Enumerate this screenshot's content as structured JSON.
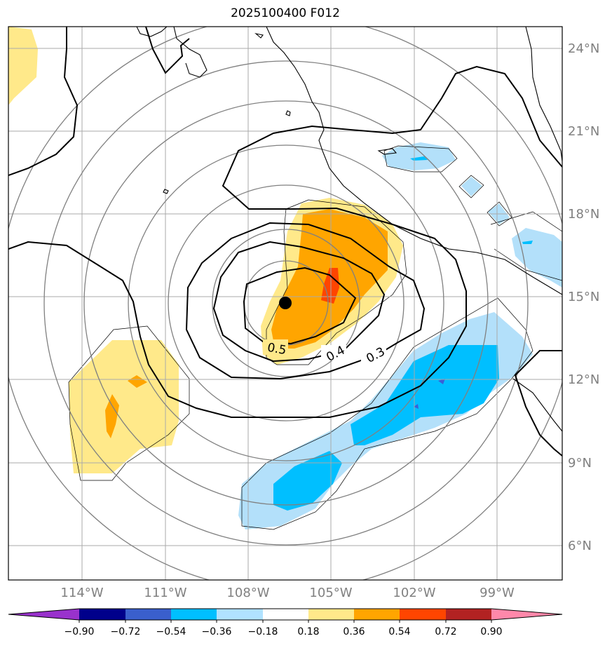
{
  "title": "2025100400 F012",
  "map": {
    "lat_labels": [
      "24°N",
      "21°N",
      "18°N",
      "15°N",
      "12°N",
      "9°N",
      "6°N"
    ],
    "lon_labels": [
      "114°W",
      "111°W",
      "108°W",
      "105°W",
      "102°W",
      "99°W"
    ],
    "contour_labels": [
      "0.5",
      "0.4",
      "0.3"
    ],
    "center_marker": "storm-center",
    "colors": {
      "gridline": "#aaaaaa",
      "range_ring": "#808080",
      "coastline": "#000000",
      "contour": "#000000",
      "pos_light": "#ffe98a",
      "pos_mid": "#ffa500",
      "pos_high": "#ff4500",
      "neg_light": "#b3e0fa",
      "neg_mid": "#00bfff",
      "neg_high": "#3b5fd6"
    }
  },
  "colorbar": {
    "ticks": [
      "−0.90",
      "−0.72",
      "−0.54",
      "−0.36",
      "−0.18",
      "0.18",
      "0.36",
      "0.54",
      "0.72",
      "0.90"
    ],
    "colors": [
      "#9932cc",
      "#00008b",
      "#3a5fcd",
      "#00bfff",
      "#b0e2ff",
      "#ffffff",
      "#ffe98a",
      "#ffa500",
      "#ff4500",
      "#b22222",
      "#ff88aa"
    ]
  }
}
